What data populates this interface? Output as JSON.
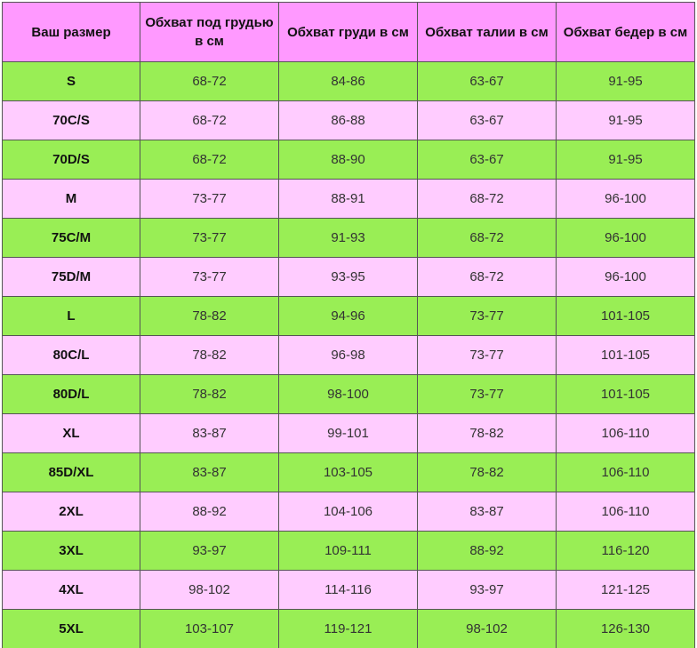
{
  "table": {
    "headers": [
      "Ваш размер",
      "Обхват под грудью в см",
      "Обхват груди в см",
      "Обхват талии в см",
      "Обхват бедер в см"
    ],
    "row_colors": {
      "green": "#99ee55",
      "pink": "#ffccff",
      "header": "#ff99ff"
    },
    "rows": [
      [
        "S",
        "68-72",
        "84-86",
        "63-67",
        "91-95"
      ],
      [
        "70C/S",
        "68-72",
        "86-88",
        "63-67",
        "91-95"
      ],
      [
        "70D/S",
        "68-72",
        "88-90",
        "63-67",
        "91-95"
      ],
      [
        "M",
        "73-77",
        "88-91",
        "68-72",
        "96-100"
      ],
      [
        "75C/M",
        "73-77",
        "91-93",
        "68-72",
        "96-100"
      ],
      [
        "75D/M",
        "73-77",
        "93-95",
        "68-72",
        "96-100"
      ],
      [
        "L",
        "78-82",
        "94-96",
        "73-77",
        "101-105"
      ],
      [
        "80C/L",
        "78-82",
        "96-98",
        "73-77",
        "101-105"
      ],
      [
        "80D/L",
        "78-82",
        "98-100",
        "73-77",
        "101-105"
      ],
      [
        "XL",
        "83-87",
        "99-101",
        "78-82",
        "106-110"
      ],
      [
        "85D/XL",
        "83-87",
        "103-105",
        "78-82",
        "106-110"
      ],
      [
        "2XL",
        "88-92",
        "104-106",
        "83-87",
        "106-110"
      ],
      [
        "3XL",
        "93-97",
        "109-111",
        "88-92",
        "116-120"
      ],
      [
        "4XL",
        "98-102",
        "114-116",
        "93-97",
        "121-125"
      ],
      [
        "5XL",
        "103-107",
        "119-121",
        "98-102",
        "126-130"
      ]
    ]
  }
}
